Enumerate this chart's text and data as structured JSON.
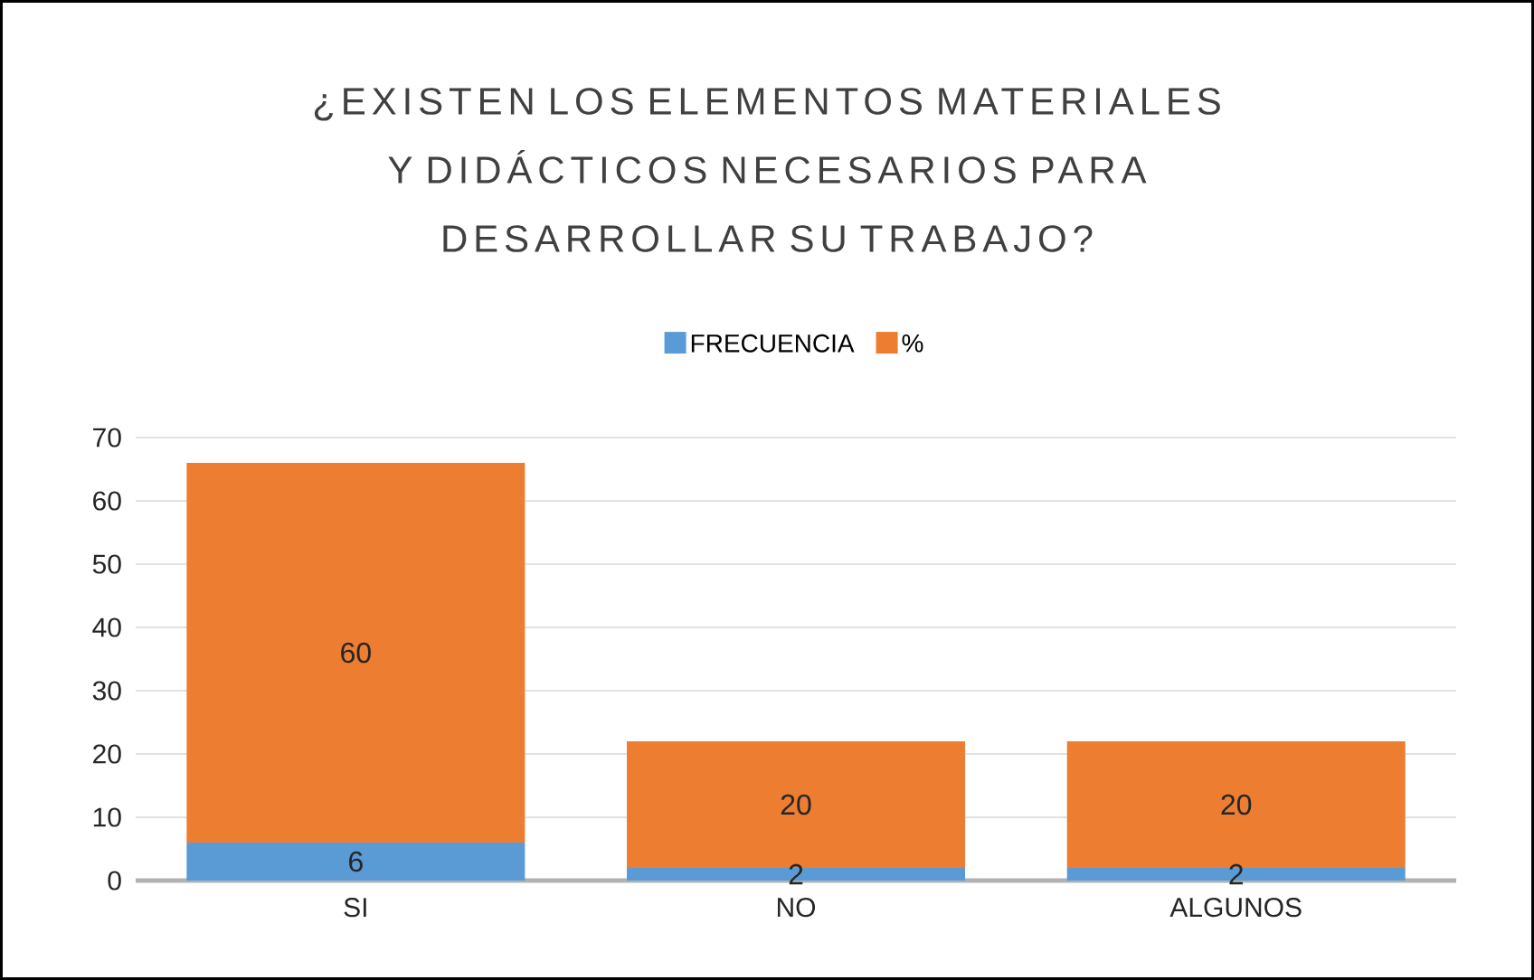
{
  "chart_data": {
    "type": "bar",
    "title": "¿EXISTEN LOS ELEMENTOS MATERIALES Y DIDÁCTICOS NECESARIOS PARA DESARROLLAR SU TRABAJO?",
    "categories": [
      "SI",
      "NO",
      "ALGUNOS"
    ],
    "series": [
      {
        "name": "FRECUENCIA",
        "color": "#5b9bd5",
        "values": [
          6,
          2,
          2
        ]
      },
      {
        "name": "%",
        "color": "#ed7d31",
        "values": [
          60,
          20,
          20
        ]
      }
    ],
    "stacked": true,
    "data_labels": true,
    "ylim": [
      0,
      70
    ],
    "yticks": [
      0,
      10,
      20,
      30,
      40,
      50,
      60,
      70
    ],
    "grid": "y",
    "legend": "top"
  }
}
